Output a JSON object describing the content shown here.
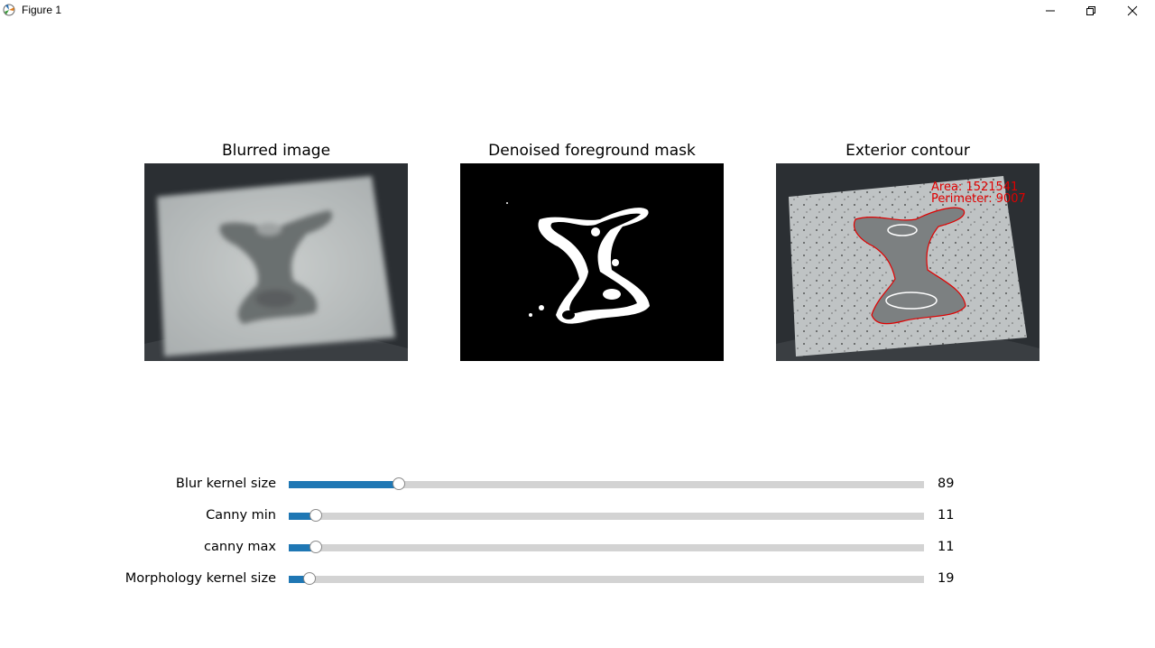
{
  "window": {
    "title": "Figure 1"
  },
  "panels": [
    {
      "title": "Blurred image"
    },
    {
      "title": "Denoised foreground mask"
    },
    {
      "title": "Exterior contour",
      "annotations": [
        "Area: 1521541",
        "Perimeter: 9007"
      ]
    }
  ],
  "sliders": [
    {
      "label": "Blur kernel size",
      "value": "89",
      "fraction": 0.174
    },
    {
      "label": "Canny min",
      "value": "11",
      "fraction": 0.043
    },
    {
      "label": "canny max",
      "value": "11",
      "fraction": 0.043
    },
    {
      "label": "Morphology kernel size",
      "value": "19",
      "fraction": 0.033
    }
  ],
  "colors": {
    "slider_fill": "#1f77b4",
    "slider_track": "#d3d3d3",
    "annotation": "#e00000"
  }
}
